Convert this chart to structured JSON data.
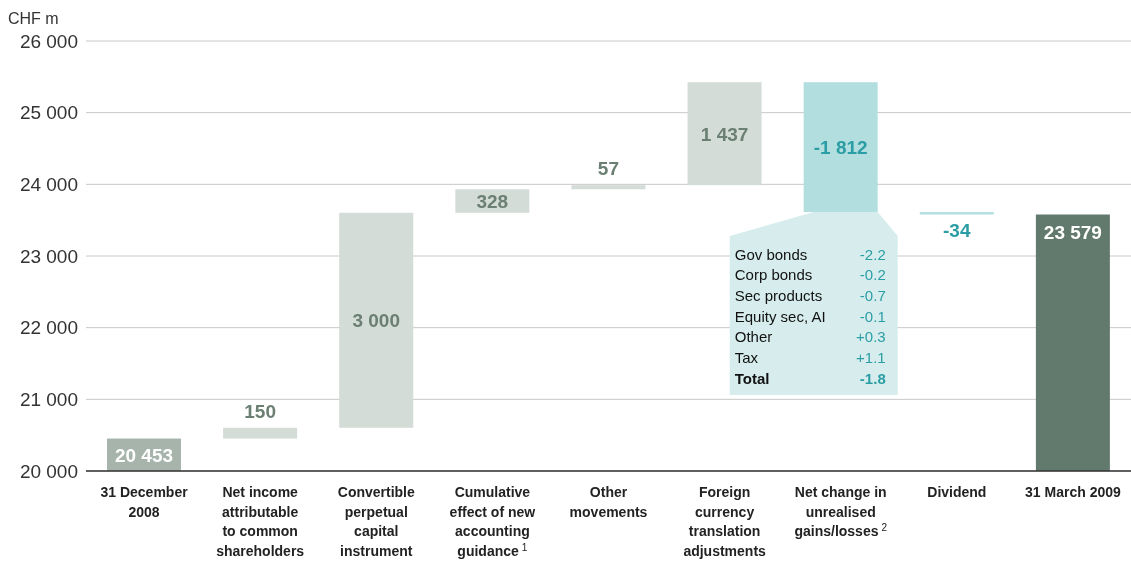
{
  "chart_data": {
    "type": "bar",
    "ylabel": "CHF m",
    "categories": [
      "31 December 2008",
      "Net income attributable to common shareholders",
      "Convertible perpetual capital instrument",
      "Cumulative effect of new accounting guidance$^{1}$",
      "Other movements",
      "Foreign currency translation adjustments",
      "Net change in unrealised gains/losses$^{2}$",
      "Dividend",
      "31 March 2009"
    ],
    "values": [
      20453,
      150,
      3000,
      328,
      57,
      1437,
      -1812,
      -34,
      23579
    ],
    "base": [
      null,
      20453,
      20603,
      23603,
      23931,
      23988,
      25425,
      23613,
      null
    ],
    "value_labels": [
      "20 453",
      "150",
      "3 000",
      "328",
      "57",
      "1 437",
      "-1 812",
      "-34",
      "23 579"
    ],
    "colors": [
      "#a6b4ac",
      "#d3dcd7",
      "#d3dcd7",
      "#d3dcd7",
      "#d3dcd7",
      "#d3dcd7",
      "#b3dedf",
      "#b3dedf",
      "#627a6d"
    ],
    "ylim": [
      20000,
      26000
    ],
    "yticks": [
      {
        "value": 20000,
        "label": "20 000"
      },
      {
        "value": 21000,
        "label": "21 000"
      },
      {
        "value": 22000,
        "label": "22 000"
      },
      {
        "value": 23000,
        "label": "23 000"
      },
      {
        "value": 24000,
        "label": "24 000"
      },
      {
        "value": 25000,
        "label": "25 000"
      },
      {
        "value": 26000,
        "label": "26 000"
      }
    ],
    "grid": "y",
    "legend": false,
    "annotations": [
      "Gov bonds -2.2",
      "Corp bonds -0.2",
      "Sec products -0.7",
      "Equity sec, AI -0.1",
      "Other +0.3",
      "Tax +1.1",
      "Total -1.8"
    ]
  }
}
